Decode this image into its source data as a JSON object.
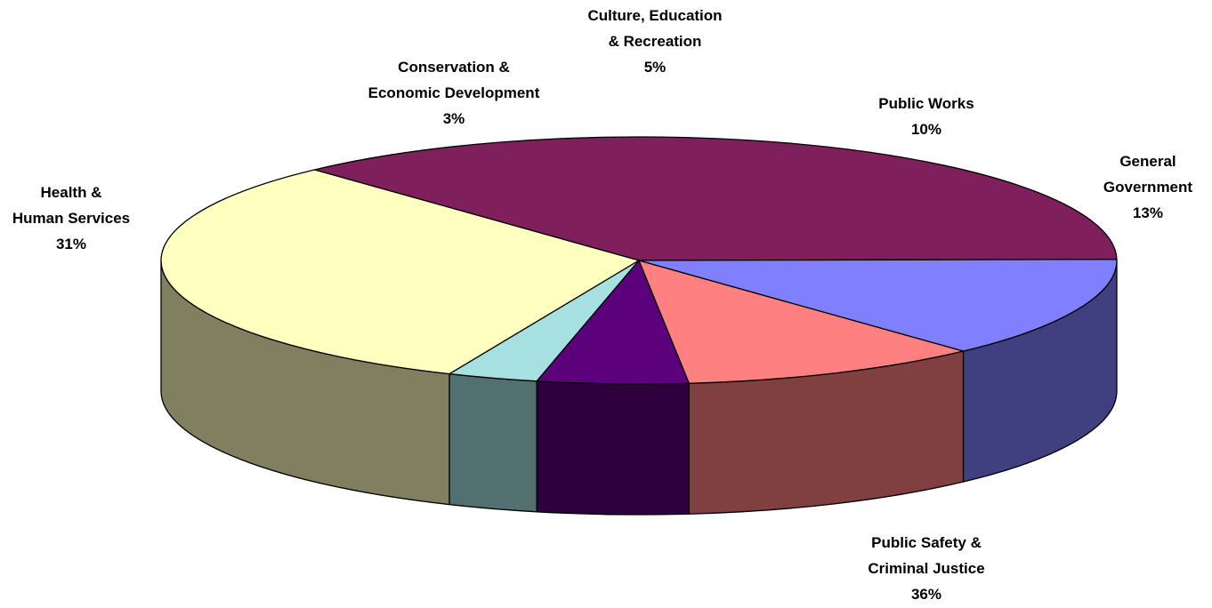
{
  "chart_data": {
    "type": "pie",
    "style": "3d",
    "title": "",
    "slices": [
      {
        "name_lines": [
          "Public Safety &",
          "Criminal Justice"
        ],
        "percent_label": "36%",
        "value": 36,
        "color": "#7F1F5C",
        "side_color": "#3F102D"
      },
      {
        "name_lines": [
          "Health &",
          "Human Services"
        ],
        "percent_label": "31%",
        "value": 31,
        "color": "#FFFFC0",
        "side_color": "#808060"
      },
      {
        "name_lines": [
          "Conservation &",
          "Economic Development"
        ],
        "percent_label": "3%",
        "value": 3,
        "color": "#A6E0E0",
        "side_color": "#537070"
      },
      {
        "name_lines": [
          "Culture, Education",
          "& Recreation"
        ],
        "percent_label": "5%",
        "value": 5,
        "color": "#5C007C",
        "side_color": "#2E003E"
      },
      {
        "name_lines": [
          "Public Works"
        ],
        "percent_label": "10%",
        "value": 10,
        "color": "#FF8080",
        "side_color": "#804040"
      },
      {
        "name_lines": [
          "General",
          "Government"
        ],
        "percent_label": "13%",
        "value": 13,
        "color": "#8080FF",
        "side_color": "#404080"
      }
    ]
  }
}
